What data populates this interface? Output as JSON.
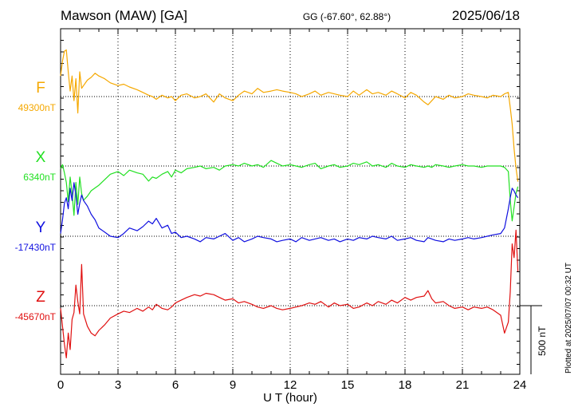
{
  "header": {
    "station": "Mawson (MAW)  [GA]",
    "coords": "GG (-67.60°,  62.88°)",
    "date": "2025/06/18"
  },
  "side_note": "Plotted at 2025/07/07 00:32 UT",
  "scale_label": "500 nT",
  "chart_data": {
    "type": "line",
    "title": "Mawson (MAW)  [GA]",
    "xlabel": "U T (hour)",
    "xlim": [
      0,
      24
    ],
    "x_ticks": [
      "0",
      "3",
      "6",
      "9",
      "12",
      "15",
      "18",
      "21",
      "24"
    ],
    "scale_bar_nT": 500,
    "grid": true,
    "series": [
      {
        "name": "F",
        "baseline_label": "49300nT",
        "baseline_nT": 49300,
        "color": "#f5a800",
        "x": [
          0.0,
          0.1,
          0.2,
          0.3,
          0.4,
          0.5,
          0.6,
          0.7,
          0.8,
          0.9,
          1.0,
          1.1,
          1.2,
          1.4,
          1.6,
          1.8,
          2.0,
          2.3,
          2.6,
          3.0,
          3.3,
          3.6,
          4.0,
          4.3,
          4.6,
          4.8,
          5.0,
          5.3,
          5.6,
          5.8,
          6.0,
          6.3,
          6.6,
          7.0,
          7.3,
          7.6,
          8.0,
          8.3,
          8.6,
          9.0,
          9.3,
          9.6,
          10.0,
          10.3,
          10.6,
          11.0,
          11.3,
          11.6,
          12.0,
          12.3,
          12.6,
          13.0,
          13.3,
          13.6,
          14.0,
          14.3,
          14.6,
          15.0,
          15.3,
          15.6,
          16.0,
          16.3,
          16.6,
          17.0,
          17.3,
          17.6,
          18.0,
          18.3,
          18.6,
          19.0,
          19.2,
          19.4,
          19.6,
          20.0,
          20.3,
          20.6,
          21.0,
          21.3,
          21.6,
          22.0,
          22.3,
          22.6,
          23.0,
          23.2,
          23.4,
          23.5,
          23.6,
          23.7,
          23.8,
          23.9
        ],
        "y": [
          150,
          260,
          330,
          340,
          180,
          40,
          150,
          -30,
          130,
          -120,
          180,
          60,
          80,
          120,
          140,
          170,
          150,
          130,
          100,
          80,
          90,
          70,
          50,
          30,
          10,
          0,
          -20,
          10,
          -10,
          0,
          -30,
          10,
          20,
          -10,
          0,
          20,
          -40,
          20,
          -10,
          -30,
          10,
          40,
          20,
          60,
          30,
          40,
          50,
          40,
          30,
          20,
          0,
          20,
          40,
          10,
          30,
          20,
          10,
          0,
          40,
          10,
          50,
          20,
          30,
          10,
          40,
          20,
          -10,
          30,
          10,
          -40,
          -60,
          -30,
          0,
          -20,
          10,
          -10,
          0,
          20,
          10,
          0,
          -10,
          10,
          0,
          20,
          30,
          -80,
          -200,
          -380,
          -520,
          -620
        ]
      },
      {
        "name": "X",
        "baseline_label": "6340nT",
        "baseline_nT": 6340,
        "color": "#22e022",
        "x": [
          0.0,
          0.1,
          0.2,
          0.3,
          0.4,
          0.5,
          0.6,
          0.7,
          0.8,
          0.9,
          1.0,
          1.1,
          1.2,
          1.4,
          1.6,
          1.8,
          2.0,
          2.3,
          2.6,
          3.0,
          3.3,
          3.6,
          4.0,
          4.3,
          4.6,
          4.8,
          5.0,
          5.3,
          5.6,
          5.8,
          6.0,
          6.3,
          6.6,
          7.0,
          7.3,
          7.6,
          8.0,
          8.3,
          8.6,
          9.0,
          9.3,
          9.6,
          10.0,
          10.3,
          10.6,
          11.0,
          11.3,
          11.6,
          12.0,
          12.3,
          12.6,
          13.0,
          13.3,
          13.6,
          14.0,
          14.3,
          14.6,
          15.0,
          15.3,
          15.6,
          16.0,
          16.3,
          16.6,
          17.0,
          17.3,
          17.6,
          18.0,
          18.3,
          18.6,
          19.0,
          19.2,
          19.4,
          19.6,
          20.0,
          20.3,
          20.6,
          21.0,
          21.3,
          21.6,
          22.0,
          22.3,
          22.6,
          23.0,
          23.2,
          23.4,
          23.5,
          23.6,
          23.7,
          23.8,
          23.9
        ],
        "y": [
          -20,
          10,
          -50,
          -120,
          -260,
          -80,
          -200,
          -360,
          -120,
          -280,
          -80,
          -200,
          -250,
          -220,
          -180,
          -160,
          -140,
          -100,
          -60,
          -40,
          -70,
          -30,
          -50,
          -60,
          -110,
          -80,
          -90,
          -60,
          -40,
          -80,
          -30,
          -50,
          -20,
          -10,
          0,
          -20,
          -10,
          -30,
          0,
          10,
          0,
          20,
          0,
          10,
          -10,
          40,
          20,
          0,
          10,
          0,
          -10,
          10,
          20,
          -20,
          0,
          10,
          -10,
          0,
          20,
          10,
          30,
          0,
          10,
          -10,
          20,
          0,
          -10,
          10,
          0,
          -10,
          0,
          -10,
          10,
          0,
          -10,
          0,
          10,
          0,
          0,
          -10,
          0,
          0,
          0,
          -10,
          -40,
          -250,
          -400,
          -300,
          -200,
          -150
        ]
      },
      {
        "name": "Y",
        "baseline_label": "-17430nT",
        "baseline_nT": -17430,
        "color": "#1010e0",
        "x": [
          0.0,
          0.1,
          0.2,
          0.3,
          0.4,
          0.5,
          0.6,
          0.7,
          0.8,
          0.9,
          1.0,
          1.1,
          1.2,
          1.4,
          1.6,
          1.8,
          2.0,
          2.3,
          2.6,
          3.0,
          3.3,
          3.6,
          4.0,
          4.3,
          4.6,
          4.8,
          5.0,
          5.3,
          5.6,
          5.8,
          6.0,
          6.3,
          6.6,
          7.0,
          7.3,
          7.6,
          8.0,
          8.3,
          8.6,
          9.0,
          9.3,
          9.6,
          10.0,
          10.3,
          10.6,
          11.0,
          11.3,
          11.6,
          12.0,
          12.3,
          12.6,
          13.0,
          13.3,
          13.6,
          14.0,
          14.3,
          14.6,
          15.0,
          15.3,
          15.6,
          16.0,
          16.3,
          16.6,
          17.0,
          17.3,
          17.6,
          18.0,
          18.3,
          18.6,
          19.0,
          19.2,
          19.4,
          19.6,
          20.0,
          20.3,
          20.6,
          21.0,
          21.3,
          21.6,
          22.0,
          22.3,
          22.6,
          23.0,
          23.2,
          23.4,
          23.5,
          23.6,
          23.7,
          23.8,
          23.9
        ],
        "y": [
          20,
          120,
          240,
          280,
          200,
          350,
          260,
          390,
          300,
          160,
          240,
          300,
          260,
          220,
          160,
          120,
          60,
          30,
          0,
          -10,
          20,
          60,
          40,
          70,
          110,
          90,
          130,
          60,
          80,
          20,
          30,
          -10,
          0,
          -20,
          -40,
          -10,
          -20,
          0,
          20,
          -30,
          -10,
          -40,
          -20,
          0,
          -10,
          -20,
          -40,
          -30,
          -20,
          -40,
          -10,
          -30,
          -20,
          -10,
          -30,
          -20,
          -40,
          -20,
          -30,
          -10,
          -20,
          0,
          -10,
          -20,
          0,
          -30,
          -20,
          -10,
          -30,
          -40,
          -10,
          -20,
          -30,
          -40,
          -20,
          -30,
          -20,
          -10,
          -20,
          -10,
          0,
          10,
          20,
          60,
          200,
          280,
          350,
          330,
          300,
          280
        ]
      },
      {
        "name": "Z",
        "baseline_label": "-45670nT",
        "baseline_nT": -45670,
        "color": "#e01010",
        "x": [
          0.0,
          0.1,
          0.2,
          0.3,
          0.4,
          0.5,
          0.6,
          0.7,
          0.8,
          0.9,
          1.0,
          1.1,
          1.2,
          1.4,
          1.6,
          1.8,
          2.0,
          2.3,
          2.6,
          3.0,
          3.3,
          3.6,
          4.0,
          4.3,
          4.6,
          4.8,
          5.0,
          5.3,
          5.6,
          5.8,
          6.0,
          6.3,
          6.6,
          7.0,
          7.3,
          7.6,
          8.0,
          8.3,
          8.6,
          9.0,
          9.3,
          9.6,
          10.0,
          10.3,
          10.6,
          11.0,
          11.3,
          11.6,
          12.0,
          12.3,
          12.6,
          13.0,
          13.3,
          13.6,
          14.0,
          14.3,
          14.6,
          15.0,
          15.3,
          15.6,
          16.0,
          16.3,
          16.6,
          17.0,
          17.3,
          17.6,
          18.0,
          18.3,
          18.6,
          19.0,
          19.2,
          19.4,
          19.6,
          20.0,
          20.3,
          20.6,
          21.0,
          21.3,
          21.6,
          22.0,
          22.3,
          22.6,
          23.0,
          23.2,
          23.4,
          23.5,
          23.6,
          23.7,
          23.8,
          23.9
        ],
        "y": [
          -20,
          -150,
          -280,
          -380,
          -200,
          -320,
          -100,
          -50,
          150,
          30,
          -60,
          300,
          -60,
          -150,
          -200,
          -220,
          -180,
          -140,
          -90,
          -60,
          -40,
          -50,
          -20,
          -40,
          -10,
          -30,
          10,
          -20,
          -30,
          -10,
          20,
          40,
          60,
          80,
          70,
          90,
          80,
          60,
          40,
          50,
          20,
          30,
          10,
          -10,
          -20,
          0,
          -20,
          -30,
          -20,
          -10,
          0,
          20,
          10,
          30,
          -10,
          20,
          0,
          10,
          -20,
          -10,
          20,
          0,
          30,
          10,
          40,
          20,
          60,
          40,
          60,
          70,
          110,
          50,
          20,
          30,
          0,
          -20,
          -10,
          -30,
          -10,
          -20,
          -10,
          -30,
          -70,
          -200,
          -120,
          100,
          450,
          350,
          550,
          250
        ]
      }
    ]
  }
}
